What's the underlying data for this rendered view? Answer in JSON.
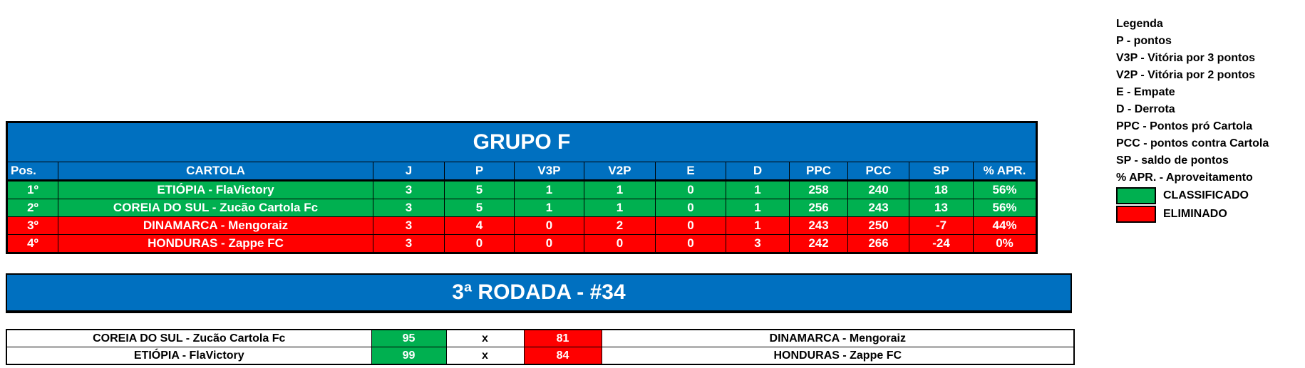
{
  "group": {
    "title": "GRUPO F",
    "headers": [
      "Pos.",
      "CARTOLA",
      "J",
      "P",
      "V3P",
      "V2P",
      "E",
      "D",
      "PPC",
      "PCC",
      "SP",
      "% APR."
    ],
    "rows": [
      {
        "status": "classificado",
        "cells": [
          "1º",
          "ETIÓPIA - FlaVictory",
          "3",
          "5",
          "1",
          "1",
          "0",
          "1",
          "258",
          "240",
          "18",
          "56%"
        ]
      },
      {
        "status": "classificado",
        "cells": [
          "2º",
          "COREIA DO SUL - Zucão Cartola Fc",
          "3",
          "5",
          "1",
          "1",
          "0",
          "1",
          "256",
          "243",
          "13",
          "56%"
        ]
      },
      {
        "status": "eliminado",
        "cells": [
          "3º",
          "DINAMARCA - Mengoraiz",
          "3",
          "4",
          "0",
          "2",
          "0",
          "1",
          "243",
          "250",
          "-7",
          "44%"
        ]
      },
      {
        "status": "eliminado",
        "cells": [
          "4º",
          "HONDURAS - Zappe FC",
          "3",
          "0",
          "0",
          "0",
          "0",
          "3",
          "242",
          "266",
          "-24",
          "0%"
        ]
      }
    ]
  },
  "round": {
    "title": "3ª RODADA - #34",
    "matches": [
      {
        "home": "COREIA DO SUL - Zucão Cartola Fc",
        "home_score": "95",
        "sep": "x",
        "away_score": "81",
        "away": "DINAMARCA - Mengoraiz"
      },
      {
        "home": "ETIÓPIA - FlaVictory",
        "home_score": "99",
        "sep": "x",
        "away_score": "84",
        "away": "HONDURAS - Zappe FC"
      }
    ]
  },
  "legend": {
    "title": "Legenda",
    "items": [
      "P - pontos",
      "V3P - Vitória por 3 pontos",
      "V2P - Vitória por 2 pontos",
      "E - Empate",
      "D - Derrota",
      "PPC - Pontos pró Cartola",
      "PCC - pontos contra Cartola",
      "SP - saldo de pontos",
      "% APR. - Aproveitamento"
    ],
    "classified": "CLASSIFICADO",
    "eliminated": "ELIMINADO"
  },
  "colors": {
    "header": "#0070c0",
    "classified": "#00b050",
    "eliminated": "#ff0000"
  }
}
